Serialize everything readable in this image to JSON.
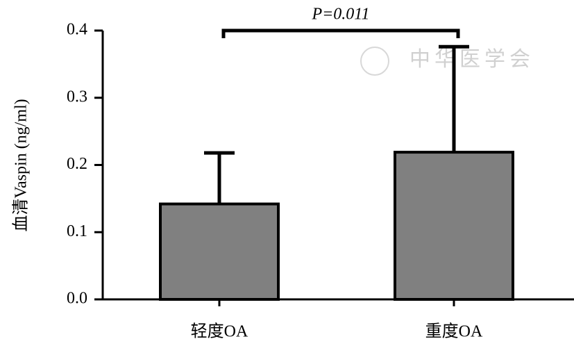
{
  "chart_data": {
    "type": "bar",
    "y_label": "血清Vaspin (ng/ml)",
    "annotation": "P=0.011",
    "watermark": "中华医学会",
    "categories": [
      "轻度OA",
      "重度OA"
    ],
    "values": [
      0.142,
      0.219
    ],
    "errors": [
      0.076,
      0.157
    ],
    "color": "#808080",
    "ylim": [
      0,
      0.4
    ],
    "yticks": [
      {
        "value": 0,
        "label": "0.0"
      },
      0.1,
      0.2,
      0.3,
      0.4
    ]
  }
}
